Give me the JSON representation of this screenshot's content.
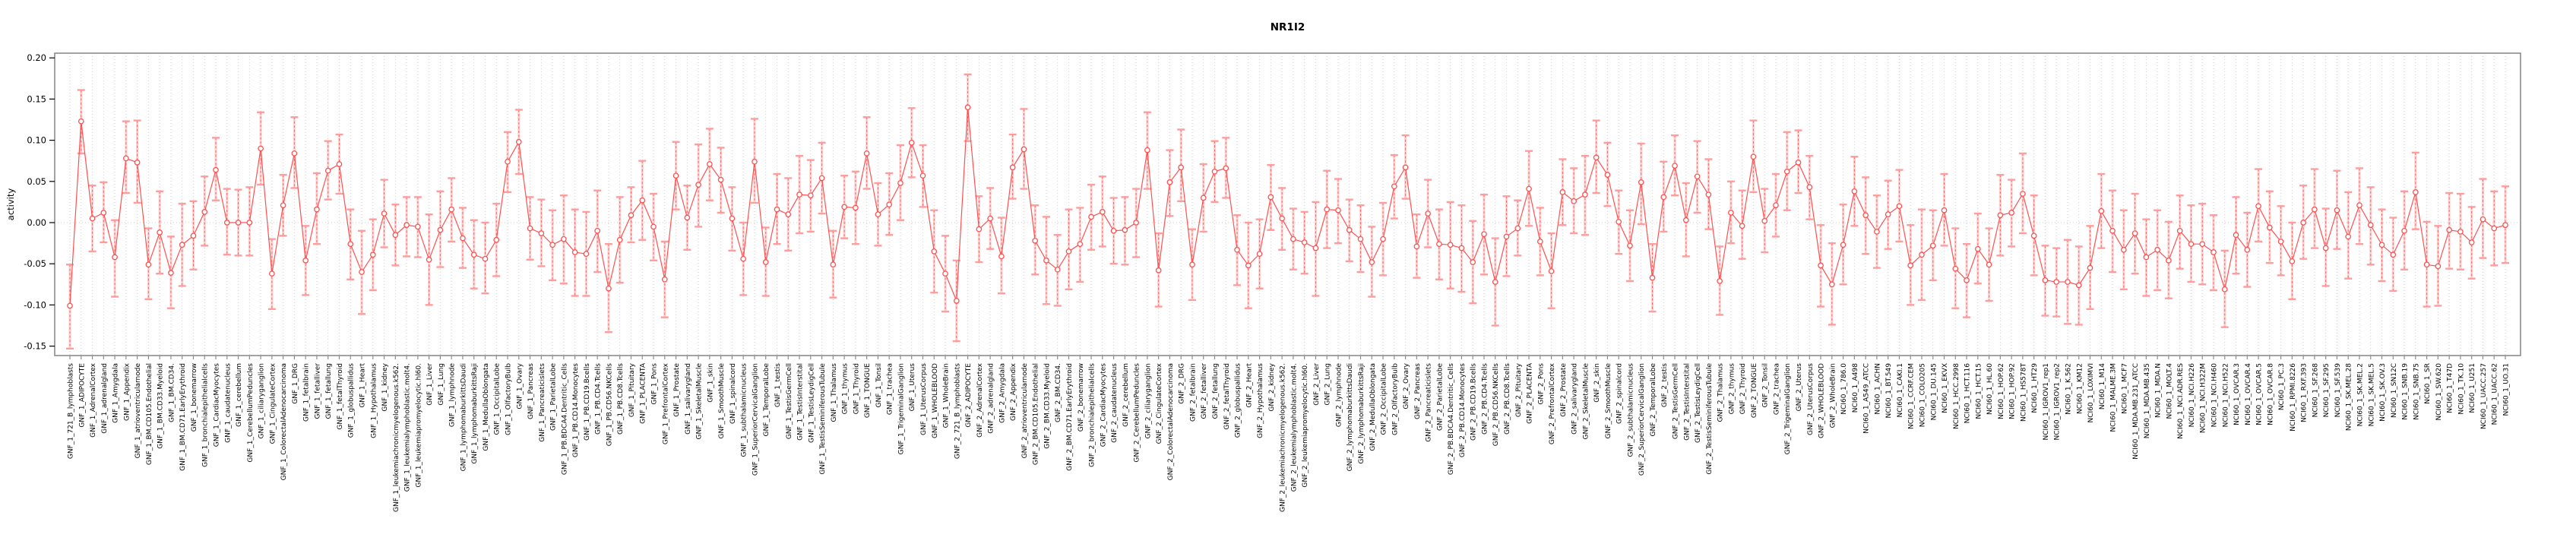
{
  "chart_data": {
    "type": "line",
    "subtype": "points-with-error-bars",
    "title": "NR1I2",
    "xlabel": "",
    "ylabel": "activity",
    "ylim": [
      -0.163,
      0.205
    ],
    "yticks": [
      0.2,
      0.15,
      0.1,
      0.05,
      0.0,
      -0.05,
      -0.1,
      -0.15
    ],
    "ytick_labels": [
      "0.20",
      "0.15",
      "0.10",
      "0.05",
      "0.00",
      "-0.05",
      "-0.10",
      "-0.15"
    ],
    "grid": "vertical dotted gridline per category; horizontal dotted line at y=0",
    "legend_position": "none",
    "categories": [
      "GNF_1_721_B_lymphoblasts",
      "GNF_1_ADIPOCYTE",
      "GNF_1_AdrenalCortex",
      "GNF_1_adrenalgland",
      "GNF_1_Amygdala",
      "GNF_1_Appendix",
      "GNF_1_atrioventricularnode",
      "GNF_1_BM.CD105.Endothelial",
      "GNF_1_BM.CD33.Myeloid",
      "GNF_1_BM.CD34.",
      "GNF_1_BM.CD71.EarlyErythroid",
      "GNF_1_bonemarrow",
      "GNF_1_bronchialepithelialcells",
      "GNF_1_CardiacMyocytes",
      "GNF_1_caudatenucleus",
      "GNF_1_cerebellum",
      "GNF_1_CerebellumPeduncles",
      "GNF_1_ciliaryganglion",
      "GNF_1_CingulateCortex",
      "GNF_1_ColorectalAdenocarcinoma",
      "GNF_1_DRG",
      "GNF_1_fetalbrain",
      "GNF_1_fetalliver",
      "GNF_1_fetallung",
      "GNF_1_fetalThyroid",
      "GNF_1_globuspallidus",
      "GNF_1_Heart",
      "GNF_1_Hypothalamus",
      "GNF_1_kidney",
      "GNF_1_leukemiachronicmyelogenous.k562.",
      "GNF_1_leukemialymphoblastic.molt4.",
      "GNF_1_leukemiapromyelocytic.hl60.",
      "GNF_1_Liver",
      "GNF_1_Lung",
      "GNF_1_lymphnode",
      "GNF_1_lymphomaburkittsDaudi",
      "GNF_1_lymphomaburkittsRaji",
      "GNF_1_MedullaOblongata",
      "GNF_1_OccipitalLobe",
      "GNF_1_OlfactoryBulb",
      "GNF_1_Ovary",
      "GNF_1_Pancreas",
      "GNF_1_Pancreaticislets",
      "GNF_1_ParietalLobe",
      "GNF_1_PB.BDCA4.Dentritic_Cells",
      "GNF_1_PB.CD14.Monocytes",
      "GNF_1_PB.CD19.Bcells",
      "GNF_1_PB.CD4.Tcells",
      "GNF_1_PB.CD56.NKCells",
      "GNF_1_PB.CD8.Tcells",
      "GNF_1_Pituitary",
      "GNF_1_PLACENTA",
      "GNF_1_Pons",
      "GNF_1_PrefrontalCortex",
      "GNF_1_Prostate",
      "GNF_1_salivarygland",
      "GNF_1_SkeletalMuscle",
      "GNF_1_skin",
      "GNF_1_SmoothMuscle",
      "GNF_1_spinalcord",
      "GNF_1_subthalamicnucleus",
      "GNF_1_SuperiorCervicalGanglion",
      "GNF_1_TemporalLobe",
      "GNF_1_testis",
      "GNF_1_TestisGermCell",
      "GNF_1_TestisInterstital",
      "GNF_1_TestisLeydigCell",
      "GNF_1_TestisSeminiferousTubule",
      "GNF_1_Thalamus",
      "GNF_1_thymus",
      "GNF_1_Thyroid",
      "GNF_1_TONGUE",
      "GNF_1_Tonsil",
      "GNF_1_trachea",
      "GNF_1_TrigeminalGanglion",
      "GNF_1_Uterus",
      "GNF_1_UterusCorpus",
      "GNF_1_WHOLEBLOOD",
      "GNF_1_WholeBrain",
      "GNF_2_721_B_lymphoblasts",
      "GNF_2_ADIPOCYTE",
      "GNF_2_AdrenalCortex",
      "GNF_2_adrenalgland",
      "GNF_2_Amygdala",
      "GNF_2_Appendix",
      "GNF_2_atrioventricularnode",
      "GNF_2_BM.CD105.Endothelial",
      "GNF_2_BM.CD33.Myeloid",
      "GNF_2_BM.CD34.",
      "GNF_2_BM.CD71.EarlyErythroid",
      "GNF_2_bonemarrow",
      "GNF_2_bronchialepithelialcells",
      "GNF_2_CardiacMyocytes",
      "GNF_2_caudatenucleus",
      "GNF_2_cerebellum",
      "GNF_2_CerebellumPeduncles",
      "GNF_2_ciliaryganglion",
      "GNF_2_CingulateCortex",
      "GNF_2_ColorectalAdenocarcinoma",
      "GNF_2_DRG",
      "GNF_2_fetalbrain",
      "GNF_2_fetalliver",
      "GNF_2_fetallung",
      "GNF_2_fetalThyroid",
      "GNF_2_globuspallidus",
      "GNF_2_Heart",
      "GNF_2_Hypothalamus",
      "GNF_2_kidney",
      "GNF_2_leukemiachronicmyelogenous.k562.",
      "GNF_2_leukemialymphoblastic.molt4.",
      "GNF_2_leukemiapromyelocytic.hl60.",
      "GNF_2_Liver",
      "GNF_2_Lung",
      "GNF_2_lymphnode",
      "GNF_2_lymphomaburkittsDaudi",
      "GNF_2_lymphomaburkittsRaji",
      "GNF_2_MedullaOblongata",
      "GNF_2_OccipitalLobe",
      "GNF_2_OlfactoryBulb",
      "GNF_2_Ovary",
      "GNF_2_Pancreas",
      "GNF_2_Pancreaticislets",
      "GNF_2_ParietalLobe",
      "GNF_2_PB.BDCA4.Dentritic_Cells",
      "GNF_2_PB.CD14.Monocytes",
      "GNF_2_PB.CD19.Bcells",
      "GNF_2_PB.CD4.Tcells",
      "GNF_2_PB.CD56.NKCells",
      "GNF_2_PB.CD8.Tcells",
      "GNF_2_Pituitary",
      "GNF_2_PLACENTA",
      "GNF_2_Pons",
      "GNF_2_PrefrontalCortex",
      "GNF_2_Prostate",
      "GNF_2_salivarygland",
      "GNF_2_SkeletalMuscle",
      "GNF_2_skin",
      "GNF_2_SmoothMuscle",
      "GNF_2_spinalcord",
      "GNF_2_subthalamicnucleus",
      "GNF_2_SuperiorCervicalGanglion",
      "GNF_2_TemporalLobe",
      "GNF_2_testis",
      "GNF_2_TestisGermCell",
      "GNF_2_TestisInterstital",
      "GNF_2_TestisLeydigCell",
      "GNF_2_TestisSeminiferousTubule",
      "GNF_2_Thalamus",
      "GNF_2_thymus",
      "GNF_2_Thyroid",
      "GNF_2_TONGUE",
      "GNF_2_Tonsil",
      "GNF_2_trachea",
      "GNF_2_TrigeminalGanglion",
      "GNF_2_Uterus",
      "GNF_2_UterusCorpus",
      "GNF_2_WHOLEBLOOD",
      "GNF_2_WholeBrain",
      "NCI60_1_786.0",
      "NCI60_1_A498",
      "NCI60_1_A549_ATCC",
      "NCI60_1_ACHN",
      "NCI60_1_BT.549",
      "NCI60_1_CAKI.1",
      "NCI60_1_CCRF.CEM",
      "NCI60_1_COLO205",
      "NCI60_1_DU.145",
      "NCI60_1_EKVX",
      "NCI60_1_HCC.2998",
      "NCI60_1_HCT.116",
      "NCI60_1_HCT.15",
      "NCI60_1_HL.60",
      "NCI60_1_HOP.62",
      "NCI60_1_HOP.92",
      "NCI60_1_HS578T",
      "NCI60_1_HT29",
      "NCI60_1_IGROV1_rep1",
      "NCI60_1_IGROV1_rep2",
      "NCI60_1_K.562",
      "NCI60_1_KM12",
      "NCI60_1_LOXIMVI",
      "NCI60_1_M14",
      "NCI60_1_MALME.3M",
      "NCI60_1_MCF7",
      "NCI60_1_MDA.MB.231_ATCC",
      "NCI60_1_MDA.MB.435",
      "NCI60_1_MDA.N",
      "NCI60_1_MOLT.4",
      "NCI60_1_NCI.ADR.RES",
      "NCI60_1_NCI.H226",
      "NCI60_1_NCI.H322M",
      "NCI60_1_NCI.H460",
      "NCI60_1_NCI.H522",
      "NCI60_1_OVCAR.3",
      "NCI60_1_OVCAR.4",
      "NCI60_1_OVCAR.5",
      "NCI60_1_OVCAR.8",
      "NCI60_1_PC.3",
      "NCI60_1_RPMI.8226",
      "NCI60_1_RXF.393",
      "NCI60_1_SF.268",
      "NCI60_1_SF.295",
      "NCI60_1_SF.539",
      "NCI60_1_SK.MEL.28",
      "NCI60_1_SK.MEL.2",
      "NCI60_1_SK.MEL.5",
      "NCI60_1_SK.OV.3",
      "NCI60_1_SN12C",
      "NCI60_1_SNB.19",
      "NCI60_1_SNB.75",
      "NCI60_1_SR",
      "NCI60_1_SW.620",
      "NCI60_1_T47D",
      "NCI60_1_TK.10",
      "NCI60_1_U251",
      "NCI60_1_UACC.257",
      "NCI60_1_UACC.62",
      "NCI60_1_UO.31"
    ],
    "values": [
      -0.101,
      0.123,
      0.005,
      0.012,
      -0.042,
      0.078,
      0.073,
      -0.051,
      -0.012,
      -0.061,
      -0.027,
      -0.016,
      0.013,
      0.064,
      0.0,
      0.0,
      0.0,
      0.09,
      -0.062,
      0.021,
      0.084,
      -0.046,
      0.016,
      0.063,
      0.071,
      -0.026,
      -0.06,
      -0.039,
      0.011,
      -0.015,
      -0.003,
      -0.005,
      -0.045,
      -0.009,
      0.016,
      -0.019,
      -0.039,
      -0.044,
      -0.021,
      0.074,
      0.098,
      -0.007,
      -0.013,
      -0.027,
      -0.02,
      -0.036,
      -0.038,
      -0.01,
      -0.08,
      -0.021,
      0.009,
      0.027,
      -0.005,
      -0.069,
      0.057,
      0.006,
      0.046,
      0.071,
      0.052,
      0.005,
      -0.044,
      0.074,
      -0.048,
      0.016,
      0.01,
      0.034,
      0.033,
      0.054,
      -0.051,
      0.019,
      0.018,
      0.084,
      0.01,
      0.022,
      0.048,
      0.097,
      0.057,
      -0.035,
      -0.062,
      -0.095,
      0.14,
      -0.008,
      0.005,
      -0.041,
      0.067,
      0.089,
      -0.022,
      -0.046,
      -0.057,
      -0.035,
      -0.026,
      0.007,
      0.013,
      -0.01,
      -0.009,
      0.0,
      0.088,
      -0.058,
      0.049,
      0.067,
      -0.051,
      0.03,
      0.062,
      0.066,
      -0.033,
      -0.052,
      -0.038,
      0.031,
      0.005,
      -0.02,
      -0.024,
      -0.031,
      0.016,
      0.015,
      -0.009,
      -0.02,
      -0.048,
      -0.02,
      0.044,
      0.067,
      -0.029,
      0.011,
      -0.026,
      -0.027,
      -0.031,
      -0.048,
      -0.014,
      -0.072,
      -0.017,
      -0.007,
      0.041,
      -0.023,
      -0.059,
      0.037,
      0.026,
      0.034,
      0.079,
      0.058,
      0.001,
      -0.028,
      0.049,
      -0.067,
      0.031,
      0.069,
      0.003,
      0.056,
      0.034,
      -0.071,
      0.012,
      -0.004,
      0.08,
      0.002,
      0.021,
      0.062,
      0.073,
      0.043,
      -0.052,
      -0.075,
      -0.027,
      0.038,
      0.009,
      -0.011,
      0.01,
      0.02,
      -0.052,
      -0.039,
      -0.028,
      0.015,
      -0.056,
      -0.07,
      -0.032,
      -0.051,
      0.009,
      0.012,
      0.035,
      -0.016,
      -0.07,
      -0.072,
      -0.072,
      -0.076,
      -0.055,
      0.014,
      -0.01,
      -0.033,
      -0.013,
      -0.042,
      -0.033,
      -0.046,
      -0.01,
      -0.026,
      -0.026,
      -0.036,
      -0.081,
      -0.015,
      -0.033,
      0.02,
      -0.006,
      -0.023,
      -0.047,
      0.0,
      0.016,
      -0.031,
      0.015,
      -0.017,
      0.021,
      -0.003,
      -0.027,
      -0.039,
      -0.01,
      0.037,
      -0.051,
      -0.053,
      -0.009,
      -0.011,
      -0.024,
      0.004,
      -0.007,
      -0.003
    ],
    "ci_low": [
      -0.153,
      0.084,
      -0.035,
      -0.024,
      -0.09,
      0.036,
      0.024,
      -0.093,
      -0.062,
      -0.104,
      -0.077,
      -0.057,
      -0.028,
      0.027,
      -0.039,
      -0.04,
      -0.04,
      0.046,
      -0.105,
      -0.016,
      0.042,
      -0.088,
      -0.026,
      0.028,
      0.035,
      -0.069,
      -0.111,
      -0.082,
      -0.03,
      -0.052,
      -0.041,
      -0.042,
      -0.1,
      -0.054,
      -0.023,
      -0.055,
      -0.08,
      -0.086,
      -0.065,
      0.037,
      0.059,
      -0.045,
      -0.053,
      -0.07,
      -0.074,
      -0.089,
      -0.089,
      -0.06,
      -0.133,
      -0.073,
      -0.024,
      -0.021,
      -0.046,
      -0.115,
      0.016,
      -0.033,
      -0.005,
      0.027,
      0.012,
      -0.034,
      -0.088,
      0.024,
      -0.089,
      -0.026,
      -0.034,
      -0.013,
      -0.011,
      0.011,
      -0.091,
      -0.019,
      -0.026,
      0.041,
      -0.028,
      -0.015,
      0.003,
      0.055,
      0.019,
      -0.085,
      -0.108,
      -0.144,
      0.099,
      -0.048,
      -0.032,
      -0.086,
      0.029,
      0.041,
      -0.063,
      -0.099,
      -0.101,
      -0.081,
      -0.072,
      -0.033,
      -0.029,
      -0.05,
      -0.051,
      -0.042,
      0.041,
      -0.102,
      0.008,
      0.026,
      -0.094,
      -0.011,
      0.025,
      0.03,
      -0.076,
      -0.104,
      -0.08,
      -0.009,
      -0.033,
      -0.057,
      -0.062,
      -0.089,
      -0.031,
      -0.025,
      -0.047,
      -0.06,
      -0.09,
      -0.064,
      0.005,
      0.029,
      -0.067,
      -0.03,
      -0.069,
      -0.08,
      -0.084,
      -0.098,
      -0.063,
      -0.125,
      -0.065,
      -0.04,
      -0.004,
      -0.064,
      -0.104,
      -0.003,
      -0.013,
      -0.015,
      0.036,
      0.02,
      -0.038,
      -0.071,
      -0.002,
      -0.108,
      -0.011,
      0.033,
      -0.041,
      0.012,
      -0.008,
      -0.112,
      -0.025,
      -0.044,
      0.037,
      -0.036,
      -0.017,
      0.015,
      0.036,
      0.004,
      -0.102,
      -0.124,
      -0.075,
      -0.004,
      -0.038,
      -0.055,
      -0.032,
      -0.023,
      -0.1,
      -0.094,
      -0.07,
      -0.028,
      -0.104,
      -0.115,
      -0.074,
      -0.095,
      -0.04,
      -0.029,
      -0.013,
      -0.064,
      -0.113,
      -0.114,
      -0.123,
      -0.124,
      -0.105,
      -0.031,
      -0.06,
      -0.081,
      -0.062,
      -0.089,
      -0.082,
      -0.092,
      -0.056,
      -0.072,
      -0.075,
      -0.082,
      -0.127,
      -0.062,
      -0.078,
      -0.023,
      -0.049,
      -0.064,
      -0.093,
      -0.044,
      -0.031,
      -0.077,
      -0.032,
      -0.068,
      -0.026,
      -0.051,
      -0.071,
      -0.083,
      -0.057,
      -0.008,
      -0.102,
      -0.101,
      -0.056,
      -0.057,
      -0.068,
      -0.043,
      -0.052,
      -0.049
    ],
    "ci_high": [
      -0.051,
      0.161,
      0.045,
      0.049,
      0.003,
      0.123,
      0.124,
      -0.007,
      0.038,
      -0.017,
      0.023,
      0.026,
      0.056,
      0.103,
      0.041,
      0.04,
      0.043,
      0.134,
      -0.02,
      0.058,
      0.128,
      -0.004,
      0.06,
      0.099,
      0.107,
      0.016,
      -0.01,
      0.004,
      0.052,
      0.022,
      0.031,
      0.031,
      0.01,
      0.038,
      0.054,
      0.018,
      0.003,
      0.0,
      0.023,
      0.11,
      0.137,
      0.031,
      0.028,
      0.015,
      0.033,
      0.016,
      0.013,
      0.039,
      -0.026,
      0.031,
      0.043,
      0.075,
      0.035,
      -0.023,
      0.098,
      0.045,
      0.095,
      0.114,
      0.091,
      0.043,
      0.0,
      0.126,
      -0.006,
      0.059,
      0.054,
      0.081,
      0.076,
      0.097,
      -0.01,
      0.057,
      0.062,
      0.128,
      0.048,
      0.06,
      0.094,
      0.139,
      0.094,
      0.015,
      -0.016,
      -0.046,
      0.18,
      0.032,
      0.042,
      0.006,
      0.107,
      0.138,
      0.021,
      0.007,
      -0.015,
      0.016,
      0.018,
      0.046,
      0.056,
      0.03,
      0.031,
      0.041,
      0.134,
      -0.013,
      0.088,
      0.113,
      -0.008,
      0.071,
      0.099,
      0.103,
      0.009,
      0.0,
      0.004,
      0.07,
      0.042,
      0.017,
      0.013,
      0.025,
      0.063,
      0.053,
      0.028,
      0.021,
      -0.005,
      0.024,
      0.082,
      0.106,
      0.01,
      0.052,
      0.016,
      0.025,
      0.021,
      0.002,
      0.034,
      -0.019,
      0.032,
      0.027,
      0.087,
      0.018,
      -0.013,
      0.077,
      0.066,
      0.081,
      0.124,
      0.097,
      0.039,
      0.015,
      0.096,
      -0.026,
      0.074,
      0.106,
      0.048,
      0.099,
      0.077,
      -0.029,
      0.05,
      0.039,
      0.124,
      0.041,
      0.059,
      0.11,
      0.112,
      0.081,
      -0.003,
      -0.025,
      0.022,
      0.08,
      0.055,
      0.033,
      0.051,
      0.064,
      -0.003,
      0.016,
      0.015,
      0.059,
      -0.007,
      -0.026,
      0.011,
      -0.007,
      0.058,
      0.052,
      0.084,
      0.033,
      -0.028,
      -0.031,
      -0.021,
      -0.029,
      -0.004,
      0.059,
      0.039,
      0.015,
      0.035,
      0.004,
      0.015,
      0.001,
      0.033,
      0.021,
      0.023,
      0.009,
      -0.034,
      0.031,
      0.012,
      0.065,
      0.038,
      0.02,
      0.0,
      0.045,
      0.065,
      0.017,
      0.063,
      0.037,
      0.066,
      0.043,
      0.016,
      0.006,
      0.038,
      0.085,
      0.001,
      -0.004,
      0.036,
      0.035,
      0.019,
      0.053,
      0.038,
      0.044
    ],
    "colors": {
      "point": "#ff5050",
      "line": "#ff5050",
      "errorbar_cap": "#ff9c9c",
      "errorbar_band": "#ffb3b3",
      "errorbar_dash": "#ff6060",
      "grid": "#cccccc",
      "box": "#8c8c8c",
      "text": "#000000",
      "background": "#ffffff"
    }
  }
}
